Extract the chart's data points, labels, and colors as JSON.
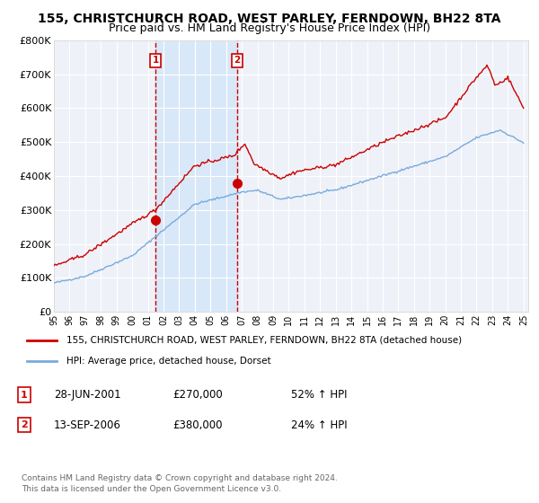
{
  "title": "155, CHRISTCHURCH ROAD, WEST PARLEY, FERNDOWN, BH22 8TA",
  "subtitle": "Price paid vs. HM Land Registry's House Price Index (HPI)",
  "ylim": [
    0,
    800000
  ],
  "yticks": [
    0,
    100000,
    200000,
    300000,
    400000,
    500000,
    600000,
    700000,
    800000
  ],
  "ytick_labels": [
    "£0",
    "£100K",
    "£200K",
    "£300K",
    "£400K",
    "£500K",
    "£600K",
    "£700K",
    "£800K"
  ],
  "red_line_color": "#cc0000",
  "blue_line_color": "#7aaadd",
  "background_color": "#ffffff",
  "plot_bg_color": "#eef2f8",
  "shade_color": "#d8e8f8",
  "dashed_line_color": "#cc0000",
  "grid_color": "#ffffff",
  "purchase1_date": 2001.49,
  "purchase1_value": 270000,
  "purchase1_label": "1",
  "purchase2_date": 2006.71,
  "purchase2_value": 380000,
  "purchase2_label": "2",
  "legend_red_label": "155, CHRISTCHURCH ROAD, WEST PARLEY, FERNDOWN, BH22 8TA (detached house)",
  "legend_blue_label": "HPI: Average price, detached house, Dorset",
  "table_row1": [
    "1",
    "28-JUN-2001",
    "£270,000",
    "52% ↑ HPI"
  ],
  "table_row2": [
    "2",
    "13-SEP-2006",
    "£380,000",
    "24% ↑ HPI"
  ],
  "footnote": "Contains HM Land Registry data © Crown copyright and database right 2024.\nThis data is licensed under the Open Government Licence v3.0.",
  "title_fontsize": 10,
  "subtitle_fontsize": 9
}
